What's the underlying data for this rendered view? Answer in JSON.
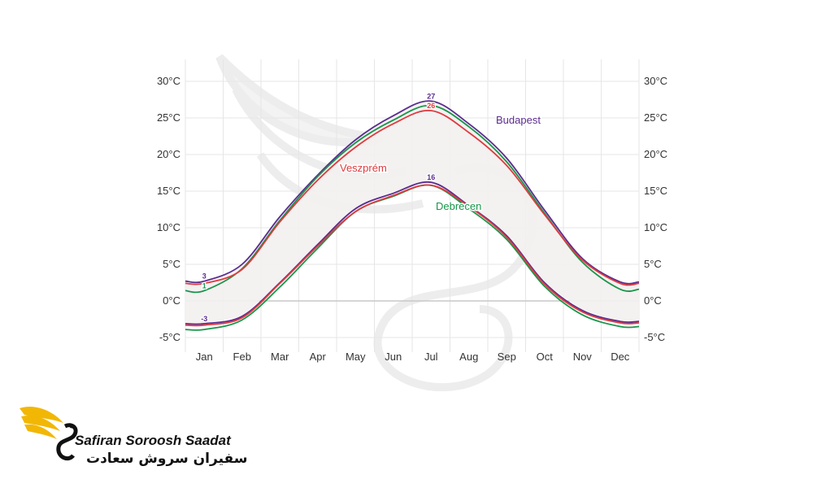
{
  "brand": {
    "name_en": "Safiran Soroosh Saadat",
    "name_fa": "سفیران سروش سعادت",
    "colors": {
      "wing": "#f2b705",
      "text": "#111111"
    }
  },
  "chart_data": {
    "type": "line",
    "title": "",
    "xlabel": "",
    "ylabel": "",
    "ylim": [
      -7,
      33
    ],
    "y_ticks": [
      -5,
      0,
      5,
      10,
      15,
      20,
      25,
      30
    ],
    "y_tick_labels": [
      "-5°C",
      "0°C",
      "5°C",
      "10°C",
      "15°C",
      "20°C",
      "25°C",
      "30°C"
    ],
    "categories": [
      "Jan",
      "Feb",
      "Mar",
      "Apr",
      "May",
      "Jun",
      "Jul",
      "Aug",
      "Sep",
      "Oct",
      "Nov",
      "Dec"
    ],
    "grid": true,
    "band_fill": "#f3eff0",
    "series": [
      {
        "name": "Budapest high",
        "label": "Budapest",
        "color": "#5b2d8f",
        "values": [
          2.7,
          5.0,
          11.5,
          17.2,
          22.0,
          25.3,
          27.3,
          24.2,
          19.5,
          12.4,
          5.8,
          2.6
        ],
        "labels": [
          {
            "index": 0,
            "text": "3"
          },
          {
            "index": 6,
            "text": "27"
          }
        ]
      },
      {
        "name": "Budapest low",
        "color": "#5b2d8f",
        "values": [
          -3.1,
          -2.1,
          2.5,
          7.7,
          12.6,
          14.7,
          16.2,
          13.0,
          8.9,
          2.5,
          -1.3,
          -2.8
        ],
        "labels": [
          {
            "index": 0,
            "text": "-3"
          },
          {
            "index": 6,
            "text": "16"
          }
        ]
      },
      {
        "name": "Debrecen high",
        "label": "Debrecen",
        "color": "#18964a",
        "values": [
          1.4,
          4.4,
          11.0,
          17.0,
          21.6,
          24.7,
          26.7,
          23.8,
          19.0,
          12.0,
          5.3,
          1.6
        ],
        "labels": [
          {
            "index": 0,
            "text": "1"
          }
        ]
      },
      {
        "name": "Debrecen low",
        "color": "#18964a",
        "values": [
          -3.9,
          -2.6,
          1.9,
          7.2,
          12.2,
          14.3,
          15.8,
          12.6,
          8.4,
          2.0,
          -1.9,
          -3.5
        ],
        "labels": []
      },
      {
        "name": "Veszprém high",
        "label": "Veszprém",
        "color": "#e03a3e",
        "values": [
          2.4,
          4.3,
          10.8,
          16.5,
          21.0,
          24.2,
          26.0,
          23.0,
          18.5,
          11.8,
          5.6,
          2.4
        ],
        "labels": [
          {
            "index": 6,
            "text": "26"
          }
        ]
      },
      {
        "name": "Veszprém low",
        "color": "#e03a3e",
        "values": [
          -3.3,
          -2.3,
          2.4,
          7.5,
          12.2,
          14.4,
          15.8,
          12.9,
          8.7,
          2.3,
          -1.5,
          -3.0
        ],
        "labels": []
      }
    ]
  }
}
